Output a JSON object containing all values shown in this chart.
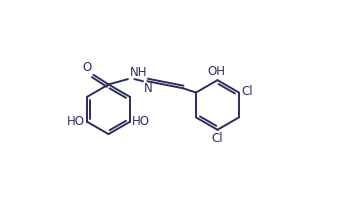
{
  "background_color": "#ffffff",
  "line_color": "#2d2d5e",
  "text_color": "#2d2d5e",
  "bond_lw": 1.4,
  "font_size": 8.5,
  "figsize": [
    3.4,
    1.97
  ],
  "dpi": 100,
  "xlim": [
    0.0,
    1.0
  ],
  "ylim": [
    0.05,
    0.95
  ]
}
